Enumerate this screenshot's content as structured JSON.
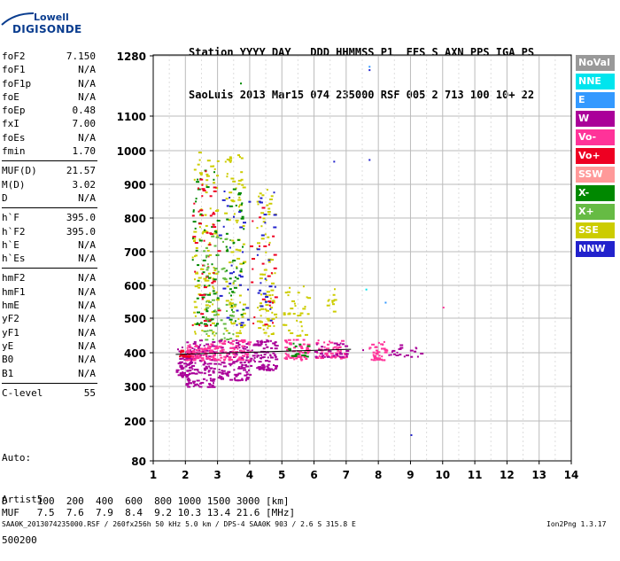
{
  "logo": {
    "top": "Lowell",
    "bottom": "DIGISONDE"
  },
  "header": {
    "line1": "Station YYYY DAY   DDD HHMMSS P1  FFS S AXN PPS IGA PS",
    "line2": "SaoLuis 2013 Mar15 074 235000 RSF 005 2 713 100 10+ 22"
  },
  "params": [
    [
      {
        "k": "foF2",
        "v": "7.150"
      },
      {
        "k": "foF1",
        "v": "N/A"
      },
      {
        "k": "foF1p",
        "v": "N/A"
      },
      {
        "k": "foE",
        "v": "N/A"
      },
      {
        "k": "foEp",
        "v": "0.48"
      },
      {
        "k": "fxI",
        "v": "7.00"
      },
      {
        "k": "foEs",
        "v": "N/A"
      },
      {
        "k": "fmin",
        "v": "1.70"
      }
    ],
    [
      {
        "k": "MUF(D)",
        "v": "21.57"
      },
      {
        "k": "M(D)",
        "v": "3.02"
      },
      {
        "k": "D",
        "v": "N/A"
      }
    ],
    [
      {
        "k": "h`F",
        "v": "395.0"
      },
      {
        "k": "h`F2",
        "v": "395.0"
      },
      {
        "k": "h`E",
        "v": "N/A"
      },
      {
        "k": "h`Es",
        "v": "N/A"
      }
    ],
    [
      {
        "k": "hmF2",
        "v": "N/A"
      },
      {
        "k": "hmF1",
        "v": "N/A"
      },
      {
        "k": "hmE",
        "v": "N/A"
      },
      {
        "k": "yF2",
        "v": "N/A"
      },
      {
        "k": "yF1",
        "v": "N/A"
      },
      {
        "k": "yE",
        "v": "N/A"
      },
      {
        "k": "B0",
        "v": "N/A"
      },
      {
        "k": "B1",
        "v": "N/A"
      }
    ],
    [
      {
        "k": "C-level",
        "v": "55"
      }
    ]
  ],
  "autoscaling": {
    "line1": "Auto:",
    "line2": "Artist5",
    "line3": "500200"
  },
  "muf_table": {
    "d_row": "D     100  200  400  600  800 1000 1500 3000 [km]",
    "muf_row": "MUF   7.5  7.6  7.9  8.4  9.2 10.3 13.4 21.6 [MHz]"
  },
  "footer": {
    "left": "SAA0K_2013074235000.RSF / 260fx256h 50 kHz 5.0 km / DPS-4 SAA0K 903 / 2.6 S 315.8 E",
    "right": "Ion2Png 1.3.17"
  },
  "legend": [
    {
      "label": "NoVal",
      "color": "#999999"
    },
    {
      "label": "NNE",
      "color": "#00e5ee"
    },
    {
      "label": "E",
      "color": "#3399ff"
    },
    {
      "label": "W",
      "color": "#aa0099"
    },
    {
      "label": "Vo-",
      "color": "#ff3399"
    },
    {
      "label": "Vo+",
      "color": "#ee0022"
    },
    {
      "label": "SSW",
      "color": "#ff9999"
    },
    {
      "label": "X-",
      "color": "#008800"
    },
    {
      "label": "X+",
      "color": "#66bb44"
    },
    {
      "label": "SSE",
      "color": "#cccc00"
    },
    {
      "label": "NNW",
      "color": "#2222cc"
    }
  ],
  "chart_data": {
    "type": "scatter",
    "title": "",
    "xlabel": "",
    "ylabel": "",
    "xlim": [
      1,
      14
    ],
    "ylim": [
      80,
      1280
    ],
    "xticks": [
      1,
      2,
      3,
      4,
      5,
      6,
      7,
      8,
      9,
      10,
      11,
      12,
      13,
      14
    ],
    "yticks": [
      80,
      200,
      300,
      400,
      500,
      600,
      700,
      800,
      900,
      1000,
      1100,
      1280
    ],
    "grid": true,
    "scale": "log-like (ionogram virtual height)",
    "trace": {
      "name": "h`F",
      "x": [
        1.7,
        7.15
      ],
      "y": [
        395,
        410
      ]
    },
    "clusters": [
      {
        "freq": [
          1.7,
          2.2
        ],
        "h": [
          330,
          420
        ],
        "mode": "W",
        "density": 60
      },
      {
        "freq": [
          1.7,
          2.2
        ],
        "h": [
          390,
          410
        ],
        "mode": "Vo+",
        "density": 30
      },
      {
        "freq": [
          2.0,
          2.9
        ],
        "h": [
          300,
          440
        ],
        "mode": "W",
        "density": 120
      },
      {
        "freq": [
          2.0,
          3.0
        ],
        "h": [
          380,
          430
        ],
        "mode": "Vo-",
        "density": 80
      },
      {
        "freq": [
          2.2,
          3.0
        ],
        "h": [
          450,
          1000
        ],
        "mode": "SSE",
        "density": 100
      },
      {
        "freq": [
          2.2,
          3.0
        ],
        "h": [
          480,
          950
        ],
        "mode": "X-",
        "density": 60
      },
      {
        "freq": [
          2.2,
          3.0
        ],
        "h": [
          480,
          950
        ],
        "mode": "Vo+",
        "density": 50
      },
      {
        "freq": [
          2.5,
          3.5
        ],
        "h": [
          440,
          760
        ],
        "mode": "X+",
        "density": 70
      },
      {
        "freq": [
          3.0,
          4.0
        ],
        "h": [
          320,
          440
        ],
        "mode": "W",
        "density": 120
      },
      {
        "freq": [
          3.0,
          4.0
        ],
        "h": [
          380,
          440
        ],
        "mode": "Vo-",
        "density": 60
      },
      {
        "freq": [
          3.2,
          3.8
        ],
        "h": [
          450,
          1000
        ],
        "mode": "SSE",
        "density": 80
      },
      {
        "freq": [
          3.2,
          3.8
        ],
        "h": [
          480,
          900
        ],
        "mode": "X-",
        "density": 40
      },
      {
        "freq": [
          3.0,
          4.0
        ],
        "h": [
          480,
          900
        ],
        "mode": "NNW",
        "density": 30
      },
      {
        "freq": [
          4.0,
          4.8
        ],
        "h": [
          350,
          440
        ],
        "mode": "W",
        "density": 90
      },
      {
        "freq": [
          4.2,
          4.8
        ],
        "h": [
          450,
          900
        ],
        "mode": "SSE",
        "density": 80
      },
      {
        "freq": [
          4.2,
          4.8
        ],
        "h": [
          480,
          880
        ],
        "mode": "NNW",
        "density": 25
      },
      {
        "freq": [
          4.0,
          4.8
        ],
        "h": [
          480,
          880
        ],
        "mode": "Vo+",
        "density": 25
      },
      {
        "freq": [
          5.0,
          5.8
        ],
        "h": [
          380,
          440
        ],
        "mode": "Vo-",
        "density": 60
      },
      {
        "freq": [
          5.0,
          5.8
        ],
        "h": [
          450,
          600
        ],
        "mode": "SSE",
        "density": 35
      },
      {
        "freq": [
          5.0,
          5.8
        ],
        "h": [
          390,
          430
        ],
        "mode": "X-",
        "density": 15
      },
      {
        "freq": [
          6.0,
          7.0
        ],
        "h": [
          385,
          440
        ],
        "mode": "Vo-",
        "density": 60
      },
      {
        "freq": [
          6.0,
          7.0
        ],
        "h": [
          390,
          430
        ],
        "mode": "W",
        "density": 30
      },
      {
        "freq": [
          6.3,
          6.7
        ],
        "h": [
          500,
          600
        ],
        "mode": "SSE",
        "density": 10
      },
      {
        "freq": [
          7.7,
          8.2
        ],
        "h": [
          380,
          440
        ],
        "mode": "Vo-",
        "density": 35
      },
      {
        "freq": [
          8.3,
          9.3
        ],
        "h": [
          390,
          430
        ],
        "mode": "W",
        "density": 20
      }
    ]
  }
}
